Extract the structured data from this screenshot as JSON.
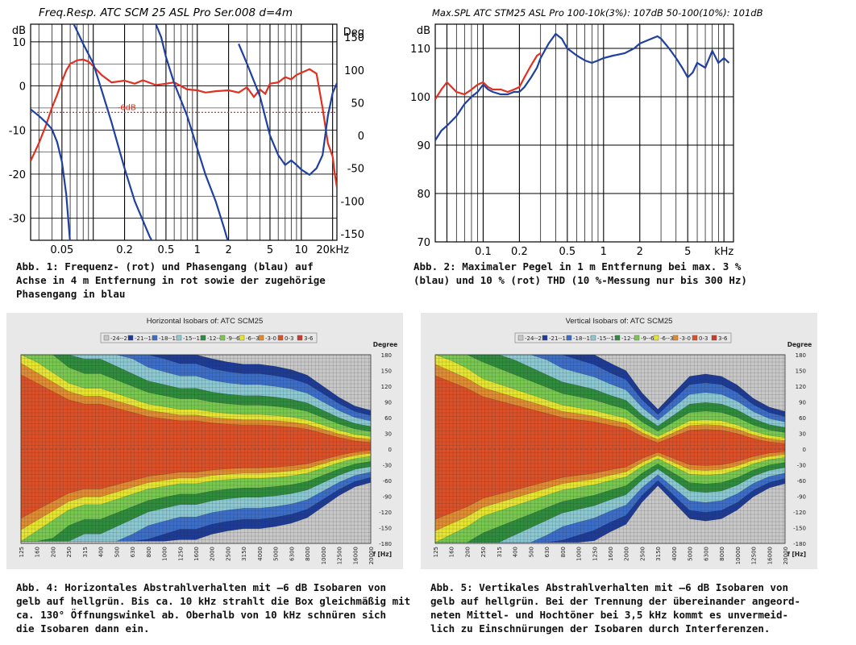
{
  "chart_data": [
    {
      "type": "line",
      "title": "Freq.Resp. ATC SCM 25 ASL Pro Ser.008 d=4m",
      "ylabel": "dB",
      "y2label": "Deg",
      "xscale": "log",
      "xlim": [
        0.025,
        22
      ],
      "ylim": [
        -35,
        14
      ],
      "y2lim": [
        -160,
        170
      ],
      "xticks": [
        "0.05",
        "0.2",
        "0.5",
        "1",
        "2",
        "5",
        "10",
        "20kHz"
      ],
      "xtick_values": [
        0.05,
        0.2,
        0.5,
        1,
        2,
        5,
        10,
        20
      ],
      "yticks": [
        "10",
        "0",
        "-10",
        "-20",
        "-30"
      ],
      "ytick_values": [
        10,
        0,
        -10,
        -20,
        -30
      ],
      "y2ticks": [
        "150",
        "100",
        "50",
        "0",
        "-50",
        "-100",
        "-150"
      ],
      "y2tick_values": [
        150,
        100,
        50,
        0,
        -50,
        -100,
        -150
      ],
      "annotation": "-6dB",
      "annotation_value": -6,
      "grid": true,
      "series": [
        {
          "color": "#e03020",
          "axis": "left",
          "x": [
            0.025,
            0.03,
            0.035,
            0.04,
            0.045,
            0.05,
            0.055,
            0.06,
            0.07,
            0.08,
            0.09,
            0.1,
            0.12,
            0.15,
            0.2,
            0.25,
            0.3,
            0.4,
            0.5,
            0.6,
            0.8,
            1,
            1.2,
            1.5,
            2,
            2.5,
            3,
            3.5,
            4,
            4.5,
            5,
            6,
            7,
            8,
            9,
            10,
            12,
            14,
            16,
            18,
            20,
            21,
            22
          ],
          "y": [
            -17,
            -13,
            -9,
            -5,
            -2,
            1,
            3.5,
            5,
            5.8,
            6,
            5.5,
            4.5,
            2.5,
            0.8,
            1.2,
            0.5,
            1.3,
            0.2,
            0.5,
            0.8,
            -0.8,
            -1,
            -1.5,
            -1.2,
            -1,
            -1.5,
            -0.3,
            -2.5,
            -0.8,
            -1.8,
            0.5,
            0.8,
            2,
            1.5,
            2.5,
            3,
            3.8,
            2.8,
            -5,
            -13,
            -16,
            -20,
            -23
          ]
        },
        {
          "color": "#2040a0",
          "axis": "right",
          "x": [
            0.025,
            0.03,
            0.035,
            0.04,
            0.045,
            0.05,
            0.055,
            0.06,
            0.065,
            0.08,
            0.1,
            0.12,
            0.15,
            0.2,
            0.25,
            0.3,
            0.35,
            0.38,
            0.4,
            0.45,
            0.5,
            0.6,
            0.8,
            1,
            1.2,
            1.5,
            1.8,
            2,
            2.5,
            3,
            4,
            5,
            6,
            7,
            8,
            9,
            10,
            12,
            14,
            16,
            18,
            20,
            22
          ],
          "y": [
            40,
            30,
            20,
            10,
            -10,
            -40,
            -90,
            -165,
            170,
            140,
            110,
            70,
            20,
            -50,
            -100,
            -130,
            -155,
            -165,
            170,
            150,
            120,
            80,
            30,
            -20,
            -60,
            -100,
            -140,
            -165,
            140,
            110,
            60,
            0,
            -30,
            -45,
            -38,
            -45,
            -52,
            -60,
            -50,
            -30,
            30,
            65,
            80
          ]
        }
      ]
    },
    {
      "type": "line",
      "title": "Max.SPL ATC STM25 ASL Pro 100-10k(3%): 107dB 50-100(10%): 101dB",
      "ylabel": "dB",
      "xscale": "log",
      "xlim": [
        0.04,
        12
      ],
      "ylim": [
        70,
        115
      ],
      "xticks": [
        "0.1",
        "0.2",
        "0.5",
        "1",
        "2",
        "5",
        "kHz"
      ],
      "xtick_values": [
        0.1,
        0.2,
        0.5,
        1,
        2,
        5,
        10
      ],
      "yticks": [
        "110",
        "100",
        "90",
        "80",
        "70"
      ],
      "ytick_values": [
        110,
        100,
        90,
        80,
        70
      ],
      "grid": true,
      "series": [
        {
          "color": "#e03020",
          "x": [
            0.04,
            0.045,
            0.05,
            0.06,
            0.07,
            0.08,
            0.09,
            0.1,
            0.11,
            0.12,
            0.14,
            0.16,
            0.18,
            0.2,
            0.22,
            0.25,
            0.28,
            0.3
          ],
          "y": [
            99.5,
            101.5,
            103,
            101,
            100.5,
            101.5,
            102.5,
            103,
            102,
            101.5,
            101.5,
            101,
            101.5,
            102,
            104,
            106.5,
            108.5,
            109
          ]
        },
        {
          "color": "#2040a0",
          "x": [
            0.04,
            0.045,
            0.05,
            0.06,
            0.07,
            0.08,
            0.09,
            0.1,
            0.11,
            0.12,
            0.14,
            0.16,
            0.18,
            0.2,
            0.22,
            0.25,
            0.28,
            0.3,
            0.35,
            0.4,
            0.45,
            0.5,
            0.6,
            0.7,
            0.8,
            0.9,
            1,
            1.2,
            1.5,
            1.8,
            2,
            2.5,
            2.8,
            3,
            3.5,
            4,
            4.5,
            5,
            5.5,
            6,
            7,
            8,
            9,
            10,
            11
          ],
          "y": [
            91,
            93,
            94,
            96,
            98.5,
            100,
            101,
            102.5,
            101.5,
            101,
            100.5,
            100.5,
            101,
            101,
            102,
            104,
            106,
            108,
            111,
            113,
            112,
            110,
            108.5,
            107.5,
            107,
            107.5,
            108,
            108.5,
            109,
            110,
            111,
            112,
            112.5,
            112,
            110,
            108,
            106,
            104,
            105,
            107,
            106,
            109.5,
            107,
            108,
            107
          ]
        }
      ]
    },
    {
      "type": "heatmap",
      "title": "Horizontal Isobars of:  ATC SCM25",
      "ylabel": "Degree",
      "xlabel": "f [Hz]",
      "legend": [
        "-24--21",
        "-21--18",
        "-18--15",
        "-15--12",
        "-12--9",
        "-9--6",
        "-6--3",
        "-3-0",
        "0-3",
        "3-6"
      ],
      "legend_colors": [
        "#c8c8c8",
        "#1e3c96",
        "#3c6ec8",
        "#8cc8d2",
        "#2e8c3c",
        "#78c850",
        "#e6e632",
        "#e08c32",
        "#dc5028",
        "#c83c28"
      ],
      "xticks": [
        "125",
        "160",
        "200",
        "250",
        "315",
        "400",
        "500",
        "630",
        "800",
        "1000",
        "1250",
        "1600",
        "2000",
        "2500",
        "3150",
        "4000",
        "5000",
        "6300",
        "8000",
        "10000",
        "12500",
        "16000",
        "20000"
      ],
      "yticks": [
        "180",
        "150",
        "120",
        "90",
        "60",
        "30",
        "0",
        "-30",
        "-60",
        "-90",
        "-120",
        "-150",
        "-180"
      ],
      "frequency_bands": [
        125,
        160,
        200,
        250,
        315,
        400,
        500,
        630,
        800,
        1000,
        1250,
        1600,
        2000,
        2500,
        3150,
        4000,
        5000,
        6300,
        8000,
        10000,
        12500,
        16000,
        20000
      ],
      "minus_6db_halfangle_deg": [
        180,
        160,
        140,
        120,
        110,
        110,
        100,
        90,
        80,
        75,
        70,
        70,
        65,
        62,
        60,
        60,
        58,
        55,
        50,
        40,
        30,
        22,
        18
      ]
    },
    {
      "type": "heatmap",
      "title": "Vertical Isobars of:  ATC SCM25",
      "ylabel": "Degree",
      "xlabel": "f [Hz]",
      "legend": [
        "-24--21",
        "-21--18",
        "-18--15",
        "-15--12",
        "-12--9",
        "-9--6",
        "-6--3",
        "-3-0",
        "0-3",
        "3-6"
      ],
      "legend_colors": [
        "#c8c8c8",
        "#1e3c96",
        "#3c6ec8",
        "#8cc8d2",
        "#2e8c3c",
        "#78c850",
        "#e6e632",
        "#e08c32",
        "#dc5028",
        "#c83c28"
      ],
      "xticks": [
        "125",
        "160",
        "200",
        "250",
        "315",
        "400",
        "500",
        "630",
        "800",
        "1000",
        "1250",
        "1600",
        "2000",
        "2500",
        "3150",
        "4000",
        "5000",
        "6300",
        "8000",
        "10000",
        "12500",
        "16000",
        "20000"
      ],
      "yticks": [
        "180",
        "150",
        "120",
        "90",
        "60",
        "30",
        "0",
        "-30",
        "-60",
        "-90",
        "-120",
        "-150",
        "-180"
      ],
      "frequency_bands": [
        125,
        160,
        200,
        250,
        315,
        400,
        500,
        630,
        800,
        1000,
        1250,
        1600,
        2000,
        2500,
        3150,
        4000,
        5000,
        6300,
        8000,
        10000,
        12500,
        16000,
        20000
      ],
      "minus_6db_halfangle_deg": [
        180,
        165,
        150,
        130,
        120,
        110,
        100,
        90,
        80,
        75,
        70,
        62,
        55,
        35,
        20,
        35,
        50,
        52,
        50,
        42,
        30,
        22,
        18
      ]
    }
  ],
  "captions": {
    "fig1": [
      "Abb. 1: Frequenz- (rot) und Phasengang (blau) auf",
      "Achse in 4 m Entfernung in rot sowie der zugehörige",
      "Phasengang in blau"
    ],
    "fig2": [
      "Abb. 2: Maximaler Pegel in 1 m Entfernung bei max. 3 %",
      "(blau) und 10 % (rot) THD (10 %-Messung nur bis 300 Hz)"
    ],
    "fig4": [
      "Abb. 4: Horizontales Abstrahlverhalten mit –6 dB Isobaren von",
      "gelb auf hellgrün. Bis ca. 10 kHz strahlt die Box gleichmäßig mit",
      "ca. 130° Öffnungswinkel ab. Oberhalb von 10 kHz schnüren sich",
      "die Isobaren dann ein."
    ],
    "fig5": [
      "Abb. 5: Vertikales Abstrahlverhalten mit –6 dB Isobaren von",
      "gelb auf hellgrün. Bei der Trennung der übereinander angeord-",
      "neten Mittel- und Hochtöner bei 3,5 kHz kommt es unvermeid-",
      "lich zu Einschnürungen der Isobaren durch Interferenzen."
    ]
  }
}
